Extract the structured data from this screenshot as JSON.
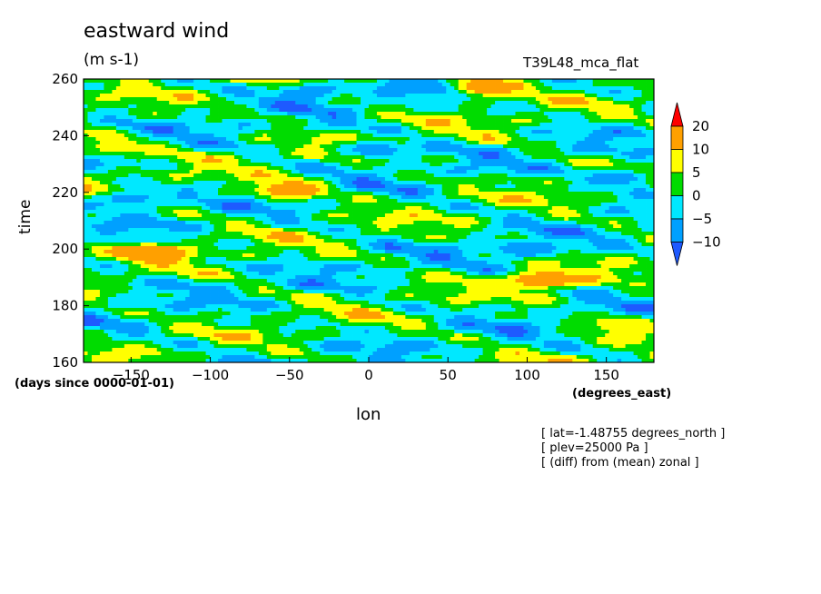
{
  "chart_data": {
    "type": "heatmap",
    "title": "eastward wind",
    "units": "(m s-1)",
    "run_name": "T39L48_mca_flat",
    "xlabel": "lon",
    "ylabel": "time",
    "x_units": "(degrees_east)",
    "y_units": "(days since 0000-01-01)",
    "xlim": [
      -180,
      180
    ],
    "ylim": [
      160,
      260
    ],
    "x_ticks": [
      -150,
      -100,
      -50,
      0,
      50,
      100,
      150
    ],
    "y_ticks": [
      160,
      180,
      200,
      220,
      240,
      260
    ],
    "colorbar": {
      "levels": [
        -10,
        -5,
        0,
        5,
        10,
        20
      ],
      "labels": [
        "20",
        "10",
        "5",
        "0",
        "-5",
        "-10"
      ],
      "colors": [
        "#1e5aff",
        "#00a0ff",
        "#00e8ff",
        "#00dc00",
        "#ffff00",
        "#ffa000",
        "#ff0000"
      ]
    },
    "features": [
      {
        "lon": -50,
        "time": 221,
        "value": 20
      },
      {
        "lon": 110,
        "time": 189,
        "value": 20
      },
      {
        "lon": 72,
        "time": 257,
        "value": 20
      },
      {
        "lon": -135,
        "time": 199,
        "value": 20
      },
      {
        "lon": -160,
        "time": 236,
        "value": 10
      },
      {
        "lon": 160,
        "time": 173,
        "value": 10
      },
      {
        "lon": -150,
        "time": 218,
        "value": -10
      },
      {
        "lon": 5,
        "time": 235,
        "value": -10
      },
      {
        "lon": 100,
        "time": 200,
        "value": -10
      },
      {
        "lon": 160,
        "time": 225,
        "value": -10
      },
      {
        "lon": 30,
        "time": 257,
        "value": -10
      },
      {
        "lon": -40,
        "time": 255,
        "value": -10
      }
    ]
  },
  "annotations": [
    "[ lat=-1.48755 degrees_north ]",
    "[ plev=25000 Pa ]",
    "[ (diff) from (mean) zonal ]"
  ]
}
